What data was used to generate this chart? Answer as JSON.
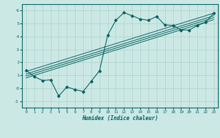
{
  "xlabel": "Humidex (Indice chaleur)",
  "ylabel": "",
  "xlim": [
    -0.5,
    23.5
  ],
  "ylim": [
    -1.5,
    6.5
  ],
  "xticks": [
    0,
    1,
    2,
    3,
    4,
    5,
    6,
    7,
    8,
    9,
    10,
    11,
    12,
    13,
    14,
    15,
    16,
    17,
    18,
    19,
    20,
    21,
    22,
    23
  ],
  "yticks": [
    -1,
    0,
    1,
    2,
    3,
    4,
    5,
    6
  ],
  "bg_color": "#cce8e4",
  "line_color": "#006060",
  "grid_color": "#aacfcb",
  "main_x": [
    0,
    1,
    2,
    3,
    4,
    5,
    6,
    7,
    8,
    9,
    10,
    11,
    12,
    13,
    14,
    15,
    16,
    17,
    18,
    19,
    20,
    21,
    22,
    23
  ],
  "main_y": [
    1.4,
    0.9,
    0.6,
    0.65,
    -0.6,
    0.1,
    -0.1,
    -0.25,
    0.55,
    1.35,
    4.1,
    5.25,
    5.85,
    5.6,
    5.35,
    5.25,
    5.55,
    4.9,
    4.85,
    4.5,
    4.5,
    4.85,
    5.1,
    5.8
  ],
  "reg_lines": [
    {
      "x": [
        0,
        23
      ],
      "y": [
        1.3,
        5.8
      ]
    },
    {
      "x": [
        0,
        23
      ],
      "y": [
        1.1,
        5.6
      ]
    },
    {
      "x": [
        0,
        23
      ],
      "y": [
        0.95,
        5.45
      ]
    },
    {
      "x": [
        0,
        23
      ],
      "y": [
        0.8,
        5.3
      ]
    }
  ]
}
